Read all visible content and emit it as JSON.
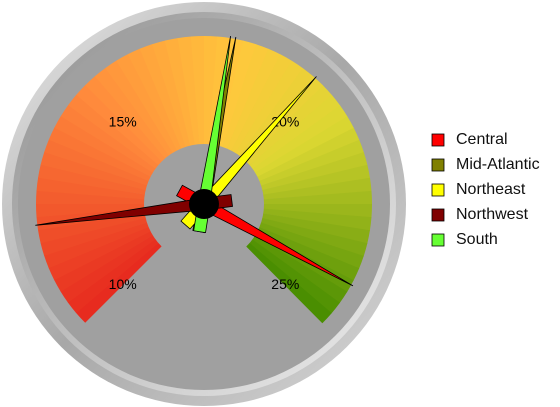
{
  "chart_data": {
    "type": "gauge",
    "ylim": [
      10,
      25
    ],
    "yticks": [
      {
        "value": 10,
        "label": "10%"
      },
      {
        "value": 15,
        "label": "15%"
      },
      {
        "value": 20,
        "label": "20%"
      },
      {
        "value": 25,
        "label": "25%"
      }
    ],
    "series": [
      {
        "name": "Central",
        "color": "#ff0000",
        "values": [
          24.1
        ]
      },
      {
        "name": "Mid-Atlantic",
        "color": "#808000",
        "values": [
          18.1
        ]
      },
      {
        "name": "Northeast",
        "color": "#ffff00",
        "values": [
          19.8
        ]
      },
      {
        "name": "Northwest",
        "color": "#800000",
        "values": [
          12.1
        ]
      },
      {
        "name": "South",
        "color": "#66ff33",
        "values": [
          18.0
        ]
      }
    ],
    "legend": "right"
  }
}
